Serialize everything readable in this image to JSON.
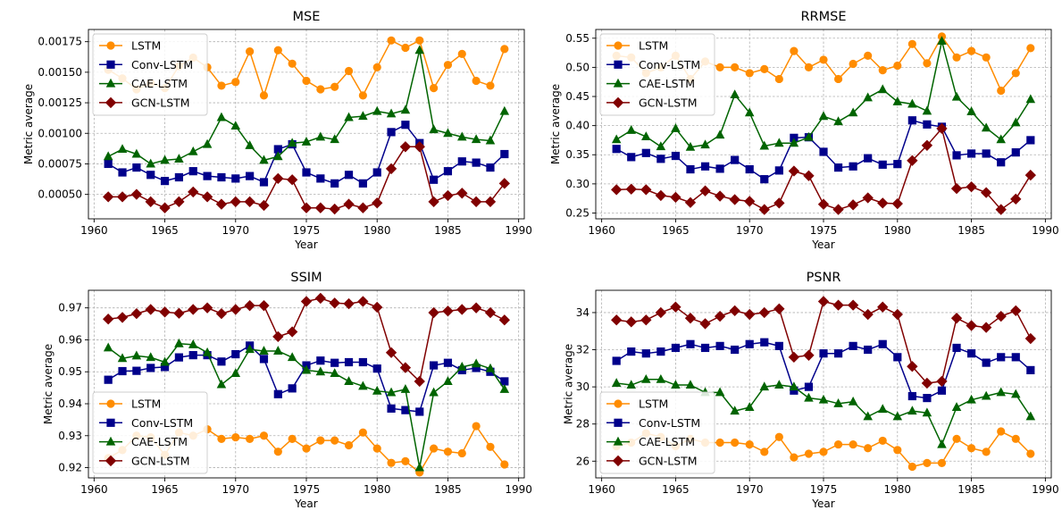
{
  "chart_data": [
    {
      "type": "line",
      "title": "MSE",
      "xlabel": "Year",
      "ylabel": "Metric average",
      "xlim": [
        1959.6,
        1990.4
      ],
      "ylim": [
        0.0003,
        0.00185
      ],
      "xticks": [
        1960,
        1965,
        1970,
        1975,
        1980,
        1985,
        1990
      ],
      "xtick_labels": [
        "1960",
        "1965",
        "1970",
        "1975",
        "1980",
        "1985",
        "1990"
      ],
      "yticks": [
        0.0005,
        0.00075,
        0.001,
        0.00125,
        0.0015,
        0.00175
      ],
      "ytick_labels": [
        "0.00050",
        "0.00075",
        "0.00100",
        "0.00125",
        "0.00150",
        "0.00175"
      ],
      "legend": "upper left",
      "grid": true,
      "x": [
        1961,
        1962,
        1963,
        1964,
        1965,
        1966,
        1967,
        1968,
        1969,
        1970,
        1971,
        1972,
        1973,
        1974,
        1975,
        1976,
        1977,
        1978,
        1979,
        1980,
        1981,
        1982,
        1983,
        1984,
        1985,
        1986,
        1987,
        1988,
        1989
      ],
      "series": [
        {
          "name": "LSTM",
          "values": [
            0.00152,
            0.00145,
            0.00136,
            0.00141,
            0.00137,
            0.00155,
            0.00162,
            0.00154,
            0.00139,
            0.00142,
            0.00167,
            0.00131,
            0.00168,
            0.00157,
            0.00143,
            0.00136,
            0.00138,
            0.00151,
            0.00131,
            0.00154,
            0.00176,
            0.0017,
            0.00176,
            0.00137,
            0.00156,
            0.00165,
            0.00143,
            0.00139,
            0.00169
          ]
        },
        {
          "name": "Conv-LSTM",
          "values": [
            0.00075,
            0.00068,
            0.00072,
            0.00066,
            0.00061,
            0.00064,
            0.00069,
            0.00065,
            0.00064,
            0.00063,
            0.00065,
            0.0006,
            0.00087,
            0.00091,
            0.00068,
            0.00063,
            0.00059,
            0.00066,
            0.00059,
            0.00068,
            0.00101,
            0.00107,
            0.00092,
            0.00062,
            0.00069,
            0.00077,
            0.00076,
            0.00072,
            0.00083
          ]
        },
        {
          "name": "CAE-LSTM",
          "values": [
            0.00081,
            0.00087,
            0.00083,
            0.00075,
            0.00078,
            0.00079,
            0.00085,
            0.00091,
            0.00113,
            0.00106,
            0.0009,
            0.00078,
            0.00081,
            0.00092,
            0.00093,
            0.00097,
            0.00095,
            0.00113,
            0.00114,
            0.00118,
            0.00116,
            0.00119,
            0.00168,
            0.00103,
            0.001,
            0.00097,
            0.00095,
            0.00094,
            0.00118
          ]
        },
        {
          "name": "GCN-LSTM",
          "values": [
            0.00048,
            0.00048,
            0.0005,
            0.00044,
            0.00039,
            0.00044,
            0.00052,
            0.00048,
            0.00042,
            0.00044,
            0.00044,
            0.00041,
            0.00063,
            0.00062,
            0.00039,
            0.00039,
            0.00038,
            0.00042,
            0.00039,
            0.00043,
            0.00071,
            0.00089,
            0.00089,
            0.00044,
            0.00049,
            0.00051,
            0.00044,
            0.00044,
            0.00059
          ]
        }
      ]
    },
    {
      "type": "line",
      "title": "RRMSE",
      "xlabel": "Year",
      "ylabel": "Metric average",
      "xlim": [
        1959.6,
        1990.4
      ],
      "ylim": [
        0.24,
        0.565
      ],
      "xticks": [
        1960,
        1965,
        1970,
        1975,
        1980,
        1985,
        1990
      ],
      "xtick_labels": [
        "1960",
        "1965",
        "1970",
        "1975",
        "1980",
        "1985",
        "1990"
      ],
      "yticks": [
        0.25,
        0.3,
        0.35,
        0.4,
        0.45,
        0.5,
        0.55
      ],
      "ytick_labels": [
        "0.25",
        "0.30",
        "0.35",
        "0.40",
        "0.45",
        "0.50",
        "0.55"
      ],
      "legend": "upper left",
      "grid": true,
      "x": [
        1961,
        1962,
        1963,
        1964,
        1965,
        1966,
        1967,
        1968,
        1969,
        1970,
        1971,
        1972,
        1973,
        1974,
        1975,
        1976,
        1977,
        1978,
        1979,
        1980,
        1981,
        1982,
        1983,
        1984,
        1985,
        1986,
        1987,
        1988,
        1989
      ],
      "series": [
        {
          "name": "LSTM",
          "values": [
            0.52,
            0.517,
            0.49,
            0.5,
            0.52,
            0.48,
            0.51,
            0.5,
            0.5,
            0.49,
            0.497,
            0.48,
            0.528,
            0.5,
            0.513,
            0.48,
            0.506,
            0.52,
            0.495,
            0.503,
            0.54,
            0.507,
            0.553,
            0.517,
            0.528,
            0.517,
            0.46,
            0.49,
            0.533
          ]
        },
        {
          "name": "Conv-LSTM",
          "values": [
            0.36,
            0.346,
            0.353,
            0.343,
            0.348,
            0.325,
            0.33,
            0.326,
            0.341,
            0.325,
            0.308,
            0.323,
            0.379,
            0.38,
            0.355,
            0.328,
            0.33,
            0.344,
            0.333,
            0.334,
            0.409,
            0.402,
            0.398,
            0.349,
            0.352,
            0.352,
            0.337,
            0.354,
            0.375
          ]
        },
        {
          "name": "CAE-LSTM",
          "values": [
            0.376,
            0.392,
            0.381,
            0.364,
            0.395,
            0.363,
            0.367,
            0.384,
            0.453,
            0.422,
            0.365,
            0.37,
            0.37,
            0.38,
            0.416,
            0.407,
            0.422,
            0.448,
            0.462,
            0.441,
            0.437,
            0.425,
            0.545,
            0.449,
            0.424,
            0.396,
            0.376,
            0.405,
            0.445
          ]
        },
        {
          "name": "GCN-LSTM",
          "values": [
            0.29,
            0.291,
            0.29,
            0.28,
            0.277,
            0.268,
            0.288,
            0.279,
            0.273,
            0.27,
            0.256,
            0.267,
            0.322,
            0.314,
            0.265,
            0.256,
            0.264,
            0.276,
            0.267,
            0.266,
            0.34,
            0.366,
            0.395,
            0.292,
            0.295,
            0.285,
            0.256,
            0.274,
            0.315
          ]
        }
      ]
    },
    {
      "type": "line",
      "title": "SSIM",
      "xlabel": "Year",
      "ylabel": "Metric average",
      "xlim": [
        1959.6,
        1990.4
      ],
      "ylim": [
        0.9168,
        0.9755
      ],
      "xticks": [
        1960,
        1965,
        1970,
        1975,
        1980,
        1985,
        1990
      ],
      "xtick_labels": [
        "1960",
        "1965",
        "1970",
        "1975",
        "1980",
        "1985",
        "1990"
      ],
      "yticks": [
        0.92,
        0.93,
        0.94,
        0.95,
        0.96,
        0.97
      ],
      "ytick_labels": [
        "0.92",
        "0.93",
        "0.94",
        "0.95",
        "0.96",
        "0.97"
      ],
      "legend": "lower left",
      "grid": true,
      "x": [
        1961,
        1962,
        1963,
        1964,
        1965,
        1966,
        1967,
        1968,
        1969,
        1970,
        1971,
        1972,
        1973,
        1974,
        1975,
        1976,
        1977,
        1978,
        1979,
        1980,
        1981,
        1982,
        1983,
        1984,
        1985,
        1986,
        1987,
        1988,
        1989
      ],
      "series": [
        {
          "name": "LSTM",
          "values": [
            0.923,
            0.9255,
            0.93,
            0.9295,
            0.924,
            0.931,
            0.93,
            0.932,
            0.929,
            0.9295,
            0.929,
            0.93,
            0.925,
            0.929,
            0.926,
            0.9285,
            0.9285,
            0.927,
            0.931,
            0.926,
            0.9215,
            0.922,
            0.9185,
            0.926,
            0.925,
            0.9245,
            0.933,
            0.9265,
            0.921
          ]
        },
        {
          "name": "Conv-LSTM",
          "values": [
            0.9475,
            0.9502,
            0.9503,
            0.9512,
            0.9515,
            0.9545,
            0.9552,
            0.9552,
            0.9532,
            0.9555,
            0.9582,
            0.954,
            0.943,
            0.9448,
            0.952,
            0.9535,
            0.9528,
            0.953,
            0.953,
            0.951,
            0.9385,
            0.938,
            0.9375,
            0.952,
            0.9528,
            0.9505,
            0.9512,
            0.95,
            0.947
          ]
        },
        {
          "name": "CAE-LSTM",
          "values": [
            0.9575,
            0.9542,
            0.955,
            0.9545,
            0.953,
            0.9588,
            0.9585,
            0.956,
            0.946,
            0.9495,
            0.957,
            0.9565,
            0.9565,
            0.9545,
            0.9505,
            0.95,
            0.9495,
            0.947,
            0.9455,
            0.944,
            0.9435,
            0.9445,
            0.92,
            0.9435,
            0.947,
            0.9515,
            0.9525,
            0.951,
            0.9445
          ]
        },
        {
          "name": "GCN-LSTM",
          "values": [
            0.9665,
            0.967,
            0.9682,
            0.9695,
            0.9687,
            0.9683,
            0.9695,
            0.97,
            0.9682,
            0.9695,
            0.9707,
            0.9707,
            0.961,
            0.9625,
            0.972,
            0.973,
            0.9715,
            0.9713,
            0.972,
            0.9702,
            0.956,
            0.9513,
            0.947,
            0.9685,
            0.969,
            0.9695,
            0.97,
            0.9685,
            0.9662
          ]
        }
      ]
    },
    {
      "type": "line",
      "title": "PSNR",
      "xlabel": "Year",
      "ylabel": "Metric average",
      "xlim": [
        1959.6,
        1990.4
      ],
      "ylim": [
        25.1,
        35.2
      ],
      "xticks": [
        1960,
        1965,
        1970,
        1975,
        1980,
        1985,
        1990
      ],
      "xtick_labels": [
        "1960",
        "1965",
        "1970",
        "1975",
        "1980",
        "1985",
        "1990"
      ],
      "yticks": [
        26,
        28,
        30,
        32,
        34
      ],
      "ytick_labels": [
        "26",
        "28",
        "30",
        "32",
        "34"
      ],
      "legend": "lower left",
      "grid": true,
      "x": [
        1961,
        1962,
        1963,
        1964,
        1965,
        1966,
        1967,
        1968,
        1969,
        1970,
        1971,
        1972,
        1973,
        1974,
        1975,
        1976,
        1977,
        1978,
        1979,
        1980,
        1981,
        1982,
        1983,
        1984,
        1985,
        1986,
        1987,
        1988,
        1989
      ],
      "series": [
        {
          "name": "LSTM",
          "values": [
            26.8,
            27.0,
            27.5,
            27.3,
            26.8,
            27.2,
            27.0,
            27.0,
            27.0,
            26.9,
            26.5,
            27.3,
            26.2,
            26.4,
            26.5,
            26.9,
            26.9,
            26.7,
            27.1,
            26.6,
            25.7,
            25.9,
            25.9,
            27.2,
            26.7,
            26.5,
            27.6,
            27.2,
            26.4
          ]
        },
        {
          "name": "Conv-LSTM",
          "values": [
            31.4,
            31.9,
            31.8,
            31.9,
            32.1,
            32.3,
            32.1,
            32.2,
            32.0,
            32.3,
            32.4,
            32.2,
            29.8,
            30.0,
            31.8,
            31.8,
            32.2,
            32.0,
            32.3,
            31.6,
            29.5,
            29.4,
            29.8,
            32.1,
            31.8,
            31.3,
            31.6,
            31.6,
            30.9
          ]
        },
        {
          "name": "CAE-LSTM",
          "values": [
            30.2,
            30.1,
            30.4,
            30.4,
            30.1,
            30.1,
            29.7,
            29.7,
            28.7,
            28.9,
            30.0,
            30.1,
            30.0,
            29.4,
            29.3,
            29.1,
            29.2,
            28.4,
            28.8,
            28.4,
            28.7,
            28.6,
            26.9,
            28.9,
            29.3,
            29.5,
            29.7,
            29.6,
            28.4
          ]
        },
        {
          "name": "GCN-LSTM",
          "values": [
            33.6,
            33.5,
            33.6,
            34.0,
            34.3,
            33.7,
            33.4,
            33.8,
            34.1,
            33.9,
            34.0,
            34.2,
            31.6,
            31.7,
            34.6,
            34.4,
            34.4,
            33.9,
            34.3,
            33.9,
            31.1,
            30.2,
            30.3,
            33.7,
            33.3,
            33.2,
            33.8,
            34.1,
            32.6
          ]
        }
      ]
    }
  ],
  "legend_labels": {
    "lstm": "LSTM",
    "conv": "Conv-LSTM",
    "cae": "CAE-LSTM",
    "gcn": "GCN-LSTM"
  },
  "styles": {
    "LSTM": {
      "color": "#ff8c00",
      "marker": "circle"
    },
    "Conv-LSTM": {
      "color": "#00008b",
      "marker": "square"
    },
    "CAE-LSTM": {
      "color": "#006400",
      "marker": "triangle"
    },
    "GCN-LSTM": {
      "color": "#800000",
      "marker": "diamond"
    }
  }
}
